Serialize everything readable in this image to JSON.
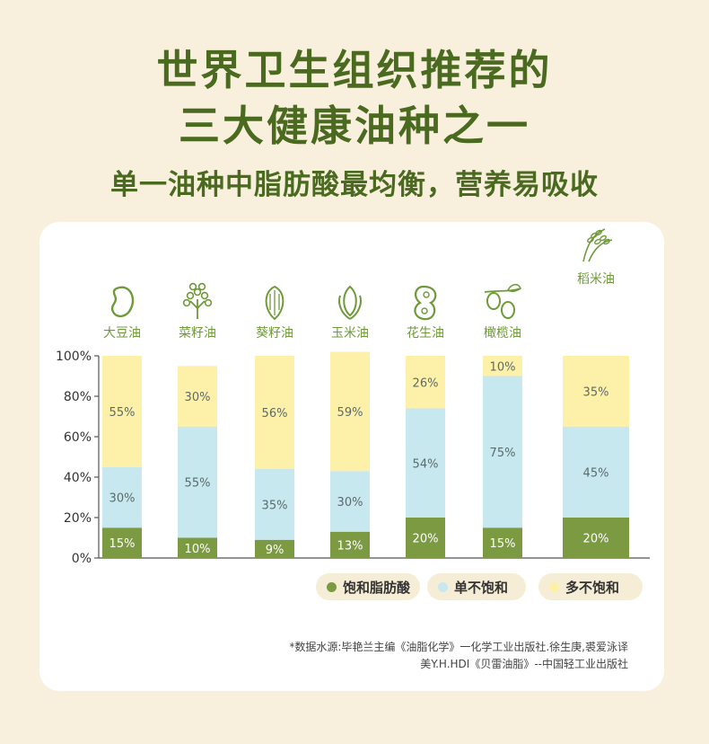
{
  "header": {
    "title_line1": "世界卫生组织推荐的",
    "title_line2": "三大健康油种之一",
    "subtitle": "单一油种中脂肪酸最均衡，营养易吸收"
  },
  "chart_data": {
    "type": "bar",
    "stacked": true,
    "categories": [
      "大豆油",
      "菜籽油",
      "葵籽油",
      "玉米油",
      "花生油",
      "橄榄油",
      "稻米油"
    ],
    "series": [
      {
        "name": "饱和脂肪酸",
        "color": "#7c9a42",
        "values": [
          15,
          10,
          9,
          13,
          20,
          15,
          20
        ],
        "labels": [
          "15%",
          "10%",
          "9%",
          "13%",
          "20%",
          "15%",
          "20%"
        ]
      },
      {
        "name": "单不饱和",
        "color": "#c8e8ef",
        "values": [
          30,
          55,
          35,
          30,
          54,
          75,
          45
        ],
        "labels": [
          "30%",
          "55%",
          "35%",
          "30%",
          "54%",
          "75%",
          "45%"
        ]
      },
      {
        "name": "多不饱和",
        "color": "#fdf0a8",
        "values": [
          55,
          30,
          56,
          59,
          26,
          10,
          35
        ],
        "labels": [
          "55%",
          "30%",
          "56%",
          "59%",
          "26%",
          "10%",
          "35%"
        ]
      }
    ],
    "ylim": [
      0,
      100
    ],
    "yticks": [
      "0%",
      "20%",
      "40%",
      "60%",
      "80%",
      "100%"
    ],
    "highlight_category": "稻米油",
    "grid": false,
    "legend_position": "bottom-right"
  },
  "icons": [
    "soybean-icon",
    "rapeseed-icon",
    "sunflower-seed-icon",
    "corn-icon",
    "peanut-icon",
    "olive-icon",
    "rice-icon"
  ],
  "legend": [
    {
      "label": "饱和脂肪酸",
      "color": "#7c9a42"
    },
    {
      "label": "单不饱和",
      "color": "#c8e8ef"
    },
    {
      "label": "多不饱和",
      "color": "#fdf0a8"
    }
  ],
  "source": {
    "line1": "*数据水源:毕艳兰主编《油脂化学》一化学工业出版社.徐生庚,裘爱泳译",
    "line2": "美Y.H.HDI《贝雷油脂》--中国轻工业出版社"
  }
}
